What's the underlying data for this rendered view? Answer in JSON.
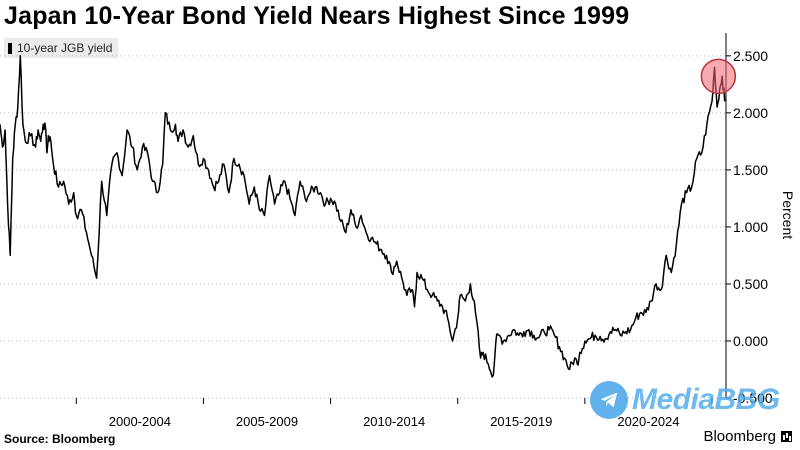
{
  "header": {
    "title": "Japan 10-Year Bond Yield Nears Highest Since 1999"
  },
  "footer": {
    "source": "Source: Bloomberg",
    "brand": "Bloomberg"
  },
  "watermark": {
    "text": "MediaBBG",
    "icon": "telegram-icon",
    "color": "#3aa0e8"
  },
  "chart_data": {
    "type": "line",
    "title": "Japan 10-Year Bond Yield Nears Highest Since 1999",
    "ylabel": "Percent",
    "xlabel": "",
    "ylim": [
      -0.5,
      2.7
    ],
    "xlim": [
      1997.0,
      2025.55
    ],
    "y_axis_position": "right",
    "grid": "horizontal-dotted",
    "legend": {
      "placement": "top-left",
      "entries": [
        "10-year JGB yield"
      ]
    },
    "x_tick_labels": [
      {
        "label": "2000-2004",
        "center": 2002.5
      },
      {
        "label": "2005-2009",
        "center": 2007.5
      },
      {
        "label": "2010-2014",
        "center": 2012.5
      },
      {
        "label": "2015-2019",
        "center": 2017.5
      },
      {
        "label": "2020-2024",
        "center": 2022.5
      }
    ],
    "x_tick_marks": [
      2000,
      2005,
      2010,
      2015,
      2020,
      2025
    ],
    "y_ticks": [
      -0.5,
      0.0,
      0.5,
      1.0,
      1.5,
      2.0,
      2.5
    ],
    "y_tick_labels": [
      "-0.500",
      "0.000",
      "0.500",
      "1.000",
      "1.500",
      "2.000",
      "2.500"
    ],
    "highlight": {
      "x": 2025.25,
      "y": 2.32,
      "color": "#f0646e"
    },
    "series": [
      {
        "name": "10-year JGB yield",
        "color": "#000000",
        "x": [
          1997.0,
          1997.1,
          1997.2,
          1997.3,
          1997.4,
          1997.5,
          1997.6,
          1997.7,
          1997.8,
          1997.9,
          1998.0,
          1998.2,
          1998.4,
          1998.5,
          1998.6,
          1998.7,
          1998.8,
          1998.85,
          1998.9,
          1999.0,
          1999.1,
          1999.3,
          1999.5,
          1999.7,
          1999.9,
          2000.0,
          2000.2,
          2000.4,
          2000.6,
          2000.8,
          2001.0,
          2001.2,
          2001.4,
          2001.6,
          2001.8,
          2002.0,
          2002.2,
          2002.4,
          2002.6,
          2002.8,
          2003.0,
          2003.2,
          2003.4,
          2003.5,
          2003.7,
          2003.9,
          2004.0,
          2004.2,
          2004.4,
          2004.6,
          2004.8,
          2005.0,
          2005.2,
          2005.4,
          2005.6,
          2005.8,
          2006.0,
          2006.2,
          2006.4,
          2006.6,
          2006.8,
          2007.0,
          2007.2,
          2007.4,
          2007.6,
          2007.8,
          2008.0,
          2008.2,
          2008.4,
          2008.6,
          2008.8,
          2009.0,
          2009.2,
          2009.4,
          2009.6,
          2009.8,
          2010.0,
          2010.2,
          2010.4,
          2010.6,
          2010.8,
          2011.0,
          2011.2,
          2011.4,
          2011.6,
          2011.8,
          2012.0,
          2012.2,
          2012.4,
          2012.6,
          2012.8,
          2013.0,
          2013.2,
          2013.3,
          2013.4,
          2013.6,
          2013.8,
          2014.0,
          2014.2,
          2014.4,
          2014.6,
          2014.8,
          2015.0,
          2015.1,
          2015.3,
          2015.5,
          2015.7,
          2015.9,
          2016.0,
          2016.2,
          2016.4,
          2016.5,
          2016.6,
          2016.8,
          2017.0,
          2017.2,
          2017.4,
          2017.6,
          2017.8,
          2018.0,
          2018.2,
          2018.4,
          2018.6,
          2018.8,
          2019.0,
          2019.2,
          2019.4,
          2019.6,
          2019.7,
          2019.8,
          2020.0,
          2020.2,
          2020.4,
          2020.6,
          2020.8,
          2021.0,
          2021.2,
          2021.4,
          2021.6,
          2021.8,
          2022.0,
          2022.2,
          2022.4,
          2022.6,
          2022.8,
          2023.0,
          2023.2,
          2023.4,
          2023.6,
          2023.8,
          2024.0,
          2024.2,
          2024.4,
          2024.6,
          2024.8,
          2025.0,
          2025.1,
          2025.2,
          2025.3,
          2025.4,
          2025.5
        ],
        "y": [
          1.9,
          1.7,
          1.85,
          1.2,
          0.75,
          1.6,
          1.9,
          2.05,
          2.5,
          1.9,
          1.75,
          1.8,
          1.7,
          1.85,
          1.75,
          1.9,
          1.85,
          1.65,
          1.8,
          1.75,
          1.55,
          1.35,
          1.4,
          1.2,
          1.3,
          1.1,
          1.15,
          0.95,
          0.75,
          0.55,
          1.4,
          1.1,
          1.55,
          1.65,
          1.45,
          1.85,
          1.7,
          1.5,
          1.7,
          1.65,
          1.4,
          1.3,
          1.55,
          2.0,
          1.85,
          1.9,
          1.75,
          1.85,
          1.7,
          1.8,
          1.55,
          1.6,
          1.5,
          1.35,
          1.4,
          1.55,
          1.3,
          1.6,
          1.55,
          1.45,
          1.2,
          1.35,
          1.15,
          1.1,
          1.45,
          1.2,
          1.3,
          1.4,
          1.25,
          1.1,
          1.4,
          1.25,
          1.3,
          1.35,
          1.3,
          1.2,
          1.25,
          1.2,
          1.05,
          0.95,
          1.15,
          1.0,
          1.1,
          0.95,
          0.9,
          0.85,
          0.8,
          0.75,
          0.6,
          0.7,
          0.55,
          0.4,
          0.45,
          0.3,
          0.6,
          0.55,
          0.45,
          0.4,
          0.35,
          0.3,
          0.2,
          0.0,
          0.2,
          0.4,
          0.35,
          0.5,
          0.25,
          -0.15,
          -0.1,
          -0.2,
          -0.3,
          0.0,
          0.05,
          0.0,
          0.05,
          0.1,
          0.05,
          0.08,
          0.1,
          0.05,
          0.03,
          0.08,
          0.1,
          0.05,
          -0.05,
          -0.15,
          -0.25,
          -0.15,
          -0.2,
          -0.1,
          0.0,
          0.02,
          0.05,
          0.04,
          0.02,
          0.08,
          0.1,
          0.05,
          0.08,
          0.1,
          0.2,
          0.25,
          0.25,
          0.35,
          0.5,
          0.45,
          0.75,
          0.6,
          0.85,
          1.2,
          1.3,
          1.35,
          1.6,
          1.65,
          1.9,
          2.1,
          2.4,
          2.05,
          2.2,
          2.32,
          2.1
        ]
      }
    ]
  }
}
